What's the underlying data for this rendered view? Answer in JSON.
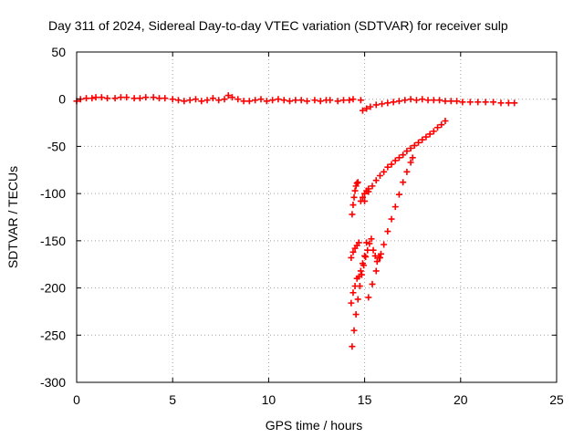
{
  "chart_data": {
    "type": "scatter",
    "title": "Day 311 of 2024, Sidereal Day-to-day VTEC variation (SDTVAR) for receiver sulp",
    "xlabel": "GPS time / hours",
    "ylabel": "SDTVAR / TECUs",
    "xlim": [
      0,
      25
    ],
    "ylim": [
      -300,
      50
    ],
    "xticks": [
      0,
      5,
      10,
      15,
      20,
      25
    ],
    "yticks": [
      50,
      0,
      -50,
      -100,
      -150,
      -200,
      -250,
      -300
    ],
    "grid": true,
    "marker": "plus",
    "color": "#ff0000",
    "series": [
      {
        "x": [
          0.0,
          0.2,
          0.5,
          0.8,
          1.0,
          1.3,
          1.6,
          2.0,
          2.3,
          2.6,
          3.0,
          3.3,
          3.6,
          4.0,
          4.3,
          4.6,
          5.0,
          5.3,
          5.6,
          5.9,
          6.2,
          6.5,
          6.8,
          7.1,
          7.4,
          7.7,
          7.9,
          8.1,
          8.4,
          8.7,
          9.0,
          9.3,
          9.6,
          9.9,
          10.2,
          10.5,
          10.8,
          11.1,
          11.4,
          11.7,
          12.0,
          12.4,
          12.7,
          13.0,
          13.2,
          13.6,
          13.9,
          14.2,
          14.4,
          14.8
        ],
        "y": [
          -2,
          0,
          1,
          1,
          2,
          2,
          1,
          1,
          2,
          2,
          1,
          1,
          2,
          2,
          1,
          1,
          0,
          -1,
          -2,
          -1,
          0,
          -2,
          -1,
          1,
          -1,
          0,
          4,
          2,
          0,
          -2,
          -2,
          -1,
          0,
          -2,
          -1,
          0,
          -1,
          -2,
          -1,
          -1,
          -2,
          -1,
          -2,
          -1,
          -1,
          -2,
          -1,
          -1,
          0,
          -1
        ]
      },
      {
        "x": [
          14.9,
          15.1,
          15.3,
          15.6,
          15.9,
          16.2,
          16.5,
          16.8,
          17.1,
          17.4,
          17.7,
          18.0,
          18.3,
          18.6,
          18.9,
          19.2,
          19.5,
          19.8,
          20.1,
          20.5,
          20.9,
          21.3,
          21.7,
          22.1,
          22.5,
          22.8
        ],
        "y": [
          -12,
          -10,
          -8,
          -6,
          -5,
          -4,
          -3,
          -2,
          -1,
          0,
          -1,
          0,
          -1,
          -1,
          -1,
          -2,
          -2,
          -2,
          -3,
          -3,
          -3,
          -3,
          -3,
          -4,
          -4,
          -4
        ]
      },
      {
        "x": [
          15.0,
          15.2,
          15.4,
          15.6,
          15.8,
          16.0,
          16.2,
          16.4,
          16.6,
          16.8,
          17.0,
          17.2,
          17.4,
          17.6,
          17.8,
          18.0,
          18.2,
          18.4,
          18.6,
          18.8,
          19.0,
          19.2
        ],
        "y": [
          -108,
          -98,
          -92,
          -86,
          -81,
          -77,
          -72,
          -69,
          -65,
          -62,
          -59,
          -55,
          -52,
          -49,
          -46,
          -43,
          -40,
          -37,
          -34,
          -30,
          -27,
          -23
        ]
      },
      {
        "x": [
          15.2,
          15.4,
          15.6,
          15.8,
          16.0,
          16.2,
          16.4,
          16.6,
          16.8,
          17.0,
          17.2,
          17.4,
          17.5
        ],
        "y": [
          -210,
          -196,
          -182,
          -168,
          -154,
          -140,
          -127,
          -114,
          -101,
          -88,
          -77,
          -67,
          -62
        ]
      },
      {
        "x": [
          14.35,
          14.45,
          14.55,
          14.65,
          14.75,
          14.85,
          14.95,
          15.05,
          15.15,
          15.25,
          15.35,
          15.45,
          15.55,
          15.65,
          15.75,
          15.85
        ],
        "y": [
          -262,
          -245,
          -228,
          -212,
          -198,
          -186,
          -176,
          -167,
          -160,
          -153,
          -148,
          -160,
          -166,
          -172,
          -168,
          -164
        ]
      },
      {
        "x": [
          14.35,
          14.4,
          14.45,
          14.5,
          14.55,
          14.6,
          14.65
        ],
        "y": [
          -122,
          -112,
          -104,
          -97,
          -92,
          -89,
          -88
        ]
      },
      {
        "x": [
          14.3,
          14.4,
          14.5,
          14.6,
          14.7,
          14.8,
          14.9,
          15.0,
          15.1
        ],
        "y": [
          -216,
          -205,
          -198,
          -190,
          -188,
          -182,
          -174,
          -166,
          -152
        ]
      },
      {
        "x": [
          14.3,
          14.4,
          14.5,
          14.6,
          14.7
        ],
        "y": [
          -168,
          -162,
          -158,
          -155,
          -152
        ]
      },
      {
        "x": [
          14.8,
          14.9,
          15.0,
          15.1,
          15.2
        ],
        "y": [
          -108,
          -104,
          -100,
          -97,
          -95
        ]
      }
    ]
  }
}
